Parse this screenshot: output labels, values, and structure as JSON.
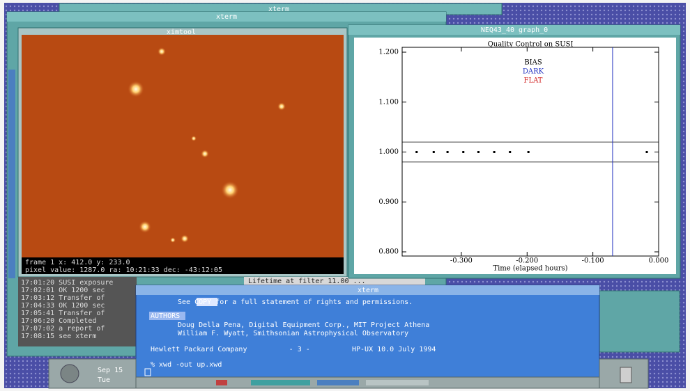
{
  "windows": {
    "top_title": "xterm",
    "back_title": "xterm",
    "image_title": "ximtool",
    "plot_title": "NEQ43_40 graph_0",
    "terminal_title": "xterm"
  },
  "image_status": [
    "frame 1   x: 412.0  y: 233.0",
    "pixel value: 1287.0   ra: 10:21:33  dec: -43:12:05"
  ],
  "status_line": "Lifetime at filter 11.00 ...",
  "log_lines": [
    "17:01:20  SUSI  exposure",
    "17:02:01  OK  1200 sec",
    "17:03:12  Transfer of",
    "17:04:33  OK  1200 sec",
    "17:05:41  Transfer of",
    "17:06:20  Completed",
    "17:07:02  a report of",
    "17:08:15  see xterm"
  ],
  "plot": {
    "title": "Quality Control on SUSI",
    "legend": [
      {
        "name": "BIAS",
        "color": "#000000"
      },
      {
        "name": "DARK",
        "color": "#2030c0"
      },
      {
        "name": "FLAT",
        "color": "#d02020"
      }
    ],
    "xlabel": "Time (elapsed hours)",
    "xlim": [
      -0.39,
      0
    ],
    "ylim": [
      0.8,
      1.2
    ],
    "xticks": [
      {
        "value": -0.3,
        "label": "-0.300"
      },
      {
        "value": -0.2,
        "label": "-0.200"
      },
      {
        "value": -0.1,
        "label": "-0.100"
      },
      {
        "value": 0,
        "label": "0.000"
      }
    ],
    "yticks": [
      {
        "value": 0.8,
        "label": "0.800"
      },
      {
        "value": 0.9,
        "label": "0.900"
      },
      {
        "value": 1,
        "label": "1.000"
      },
      {
        "value": 1.1,
        "label": "1.100"
      },
      {
        "value": 1.2,
        "label": "1.200"
      }
    ],
    "points": {
      "x": [
        -0.368,
        -0.342,
        -0.321,
        -0.297,
        -0.274,
        -0.25,
        -0.226,
        -0.198,
        -0.018
      ],
      "y": [
        1,
        1,
        1,
        1,
        1,
        1,
        1,
        1,
        1
      ]
    },
    "limits": [
      0.98,
      1.02
    ],
    "marker_x": -0.07
  },
  "terminal": {
    "lines": [
      "See COPY for a full statement of rights and permissions.",
      "AUTHORS",
      "Doug Della Pena, Digital Equipment Corp., MIT Project Athena",
      "William F. Wyatt, Smithsonian Astrophysical Observatory",
      "Hewlett Packard Company          - 3 -          HP-UX 10.0 July 1994",
      "% xwd -out up.xwd"
    ]
  },
  "taskbar": {
    "labels": [
      "Sep 15",
      "Tue"
    ]
  }
}
